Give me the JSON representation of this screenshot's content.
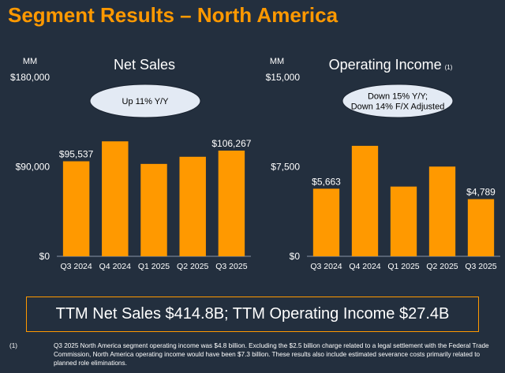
{
  "title": "Segment Results – North America",
  "ttm_text": "TTM Net Sales $414.8B; TTM Operating Income $27.4B",
  "footnote": {
    "number": "(1)",
    "text": "Q3 2025 North America segment operating income was $4.8 billion. Excluding the $2.5 billion charge related to a legal settlement with the Federal Trade Commission, North America operating income would have been $7.3 billion. These results also include estimated severance costs primarily related to planned role eliminations."
  },
  "colors": {
    "background": "#232f3e",
    "accent": "#ff9900",
    "bubble": "#e3eaf4",
    "text": "#ffffff"
  },
  "chart_data": [
    {
      "type": "bar",
      "title": "Net Sales",
      "title_superscript": "",
      "unit_label": "MM",
      "categories": [
        "Q3 2024",
        "Q4 2024",
        "Q1 2025",
        "Q2 2025",
        "Q3 2025"
      ],
      "values": [
        95537,
        115586,
        92887,
        100068,
        106267
      ],
      "ylim": [
        0,
        180000
      ],
      "yticks": [
        {
          "value": 0,
          "label": "$0"
        },
        {
          "value": 90000,
          "label": "$90,000"
        },
        {
          "value": 180000,
          "label": "$180,000"
        }
      ],
      "data_labels": [
        {
          "index": 0,
          "label": "$95,537"
        },
        {
          "index": 4,
          "label": "$106,267"
        }
      ],
      "callout": [
        "Up 11% Y/Y"
      ]
    },
    {
      "type": "bar",
      "title": "Operating Income",
      "title_superscript": "(1)",
      "unit_label": "MM",
      "categories": [
        "Q3 2024",
        "Q4 2024",
        "Q1 2025",
        "Q2 2025",
        "Q3 2025"
      ],
      "values": [
        5663,
        9256,
        5841,
        7517,
        4789
      ],
      "ylim": [
        0,
        15000
      ],
      "yticks": [
        {
          "value": 0,
          "label": "$0"
        },
        {
          "value": 7500,
          "label": "$7,500"
        },
        {
          "value": 15000,
          "label": "$15,000"
        }
      ],
      "data_labels": [
        {
          "index": 0,
          "label": "$5,663"
        },
        {
          "index": 4,
          "label": "$4,789"
        }
      ],
      "callout": [
        "Down 15% Y/Y;",
        "Down 14% F/X Adjusted"
      ]
    }
  ]
}
